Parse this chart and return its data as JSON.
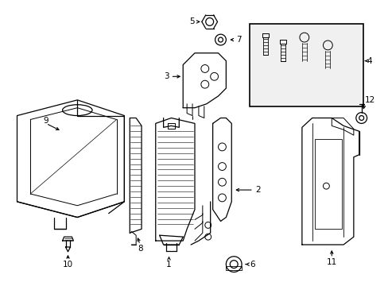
{
  "background_color": "#ffffff",
  "line_color": "#000000",
  "text_color": "#000000",
  "figsize": [
    4.89,
    3.6
  ],
  "dpi": 100
}
